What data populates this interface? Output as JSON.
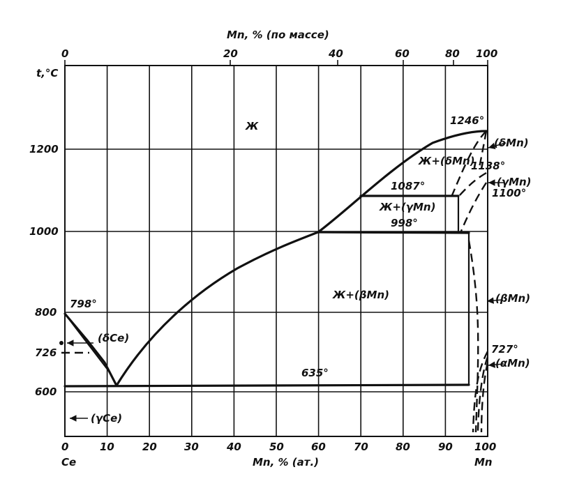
{
  "diagram": {
    "top_axis_title": "Mn, % (по массе)",
    "bottom_axis_title": "Mn, % (ат.)",
    "y_axis_title": "t,°C",
    "left_element": "Ce",
    "right_element": "Mn",
    "top_ticks": [
      "0",
      "20",
      "40",
      "60",
      "80",
      "100"
    ],
    "bottom_ticks": [
      "0",
      "10",
      "20",
      "30",
      "40",
      "50",
      "60",
      "70",
      "80",
      "90",
      "100"
    ],
    "y_ticks": [
      "600",
      "800",
      "1000",
      "1200"
    ],
    "extra_y_tick": "726",
    "phase_labels": {
      "liquid": "Ж",
      "liquid_delta_mn": "Ж+(δMn)",
      "liquid_gamma_mn": "Ж+(γMn)",
      "liquid_beta_mn": "Ж+(βMn)",
      "delta_ce": "(δCe)",
      "gamma_ce": "(γCe)",
      "delta_mn": "(δMn)",
      "gamma_mn": "(γMn)",
      "beta_mn": "(βMn)",
      "alpha_mn": "(αMn)"
    },
    "temperature_labels": {
      "t1246": "1246°",
      "t1138": "1138°",
      "t1100": "1100°",
      "t1087": "1087°",
      "t998": "998°",
      "t798": "798°",
      "t727": "727°",
      "t635": "635°"
    }
  }
}
